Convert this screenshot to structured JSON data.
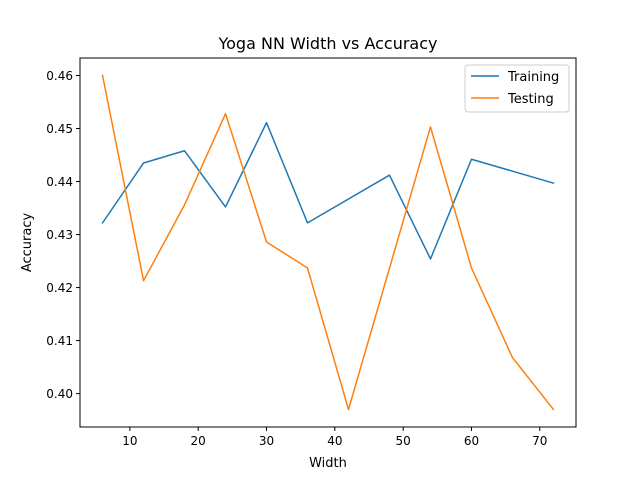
{
  "chart_data": {
    "type": "line",
    "title": "Yoga NN Width vs Accuracy",
    "xlabel": "Width",
    "ylabel": "Accuracy",
    "xlim": [
      2.7,
      75.3
    ],
    "ylim": [
      0.3937,
      0.4633
    ],
    "xticks": [
      10,
      20,
      30,
      40,
      50,
      60,
      70
    ],
    "yticks": [
      0.4,
      0.41,
      0.42,
      0.43,
      0.44,
      0.45,
      0.46
    ],
    "legend_position": "top-right",
    "grid": false,
    "series": [
      {
        "name": "Training",
        "color": "#1f77b4",
        "x": [
          6,
          12,
          18,
          24,
          30,
          36,
          48,
          54,
          60,
          72
        ],
        "values": [
          0.4322,
          0.4435,
          0.4458,
          0.4352,
          0.4511,
          0.4322,
          0.4412,
          0.4254,
          0.4442,
          0.4397
        ]
      },
      {
        "name": "Testing",
        "color": "#ff7f0e",
        "x": [
          6,
          12,
          18,
          24,
          30,
          36,
          42,
          54,
          60,
          66,
          72
        ],
        "values": [
          0.46,
          0.4213,
          0.4356,
          0.4528,
          0.4286,
          0.4237,
          0.397,
          0.4503,
          0.4237,
          0.4068,
          0.397
        ]
      }
    ]
  }
}
